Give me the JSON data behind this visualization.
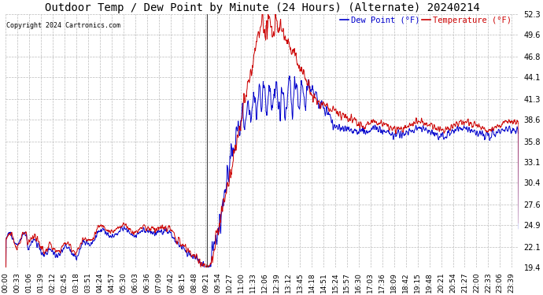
{
  "title": "Outdoor Temp / Dew Point by Minute (24 Hours) (Alternate) 20240214",
  "copyright": "Copyright 2024 Cartronics.com",
  "legend_dew": "Dew Point (°F)",
  "legend_temp": "Temperature (°F)",
  "dew_color": "#0000cc",
  "temp_color": "#cc0000",
  "background_color": "#ffffff",
  "grid_color": "#bbbbbb",
  "title_fontsize": 10,
  "label_fontsize": 7,
  "yticks": [
    19.4,
    22.1,
    24.9,
    27.6,
    30.4,
    33.1,
    35.8,
    38.6,
    41.3,
    44.1,
    46.8,
    49.6,
    52.3
  ],
  "ymin": 19.4,
  "ymax": 52.3,
  "xtick_interval": 33,
  "vertical_line_x": 564,
  "vertical_line_color": "#444444"
}
